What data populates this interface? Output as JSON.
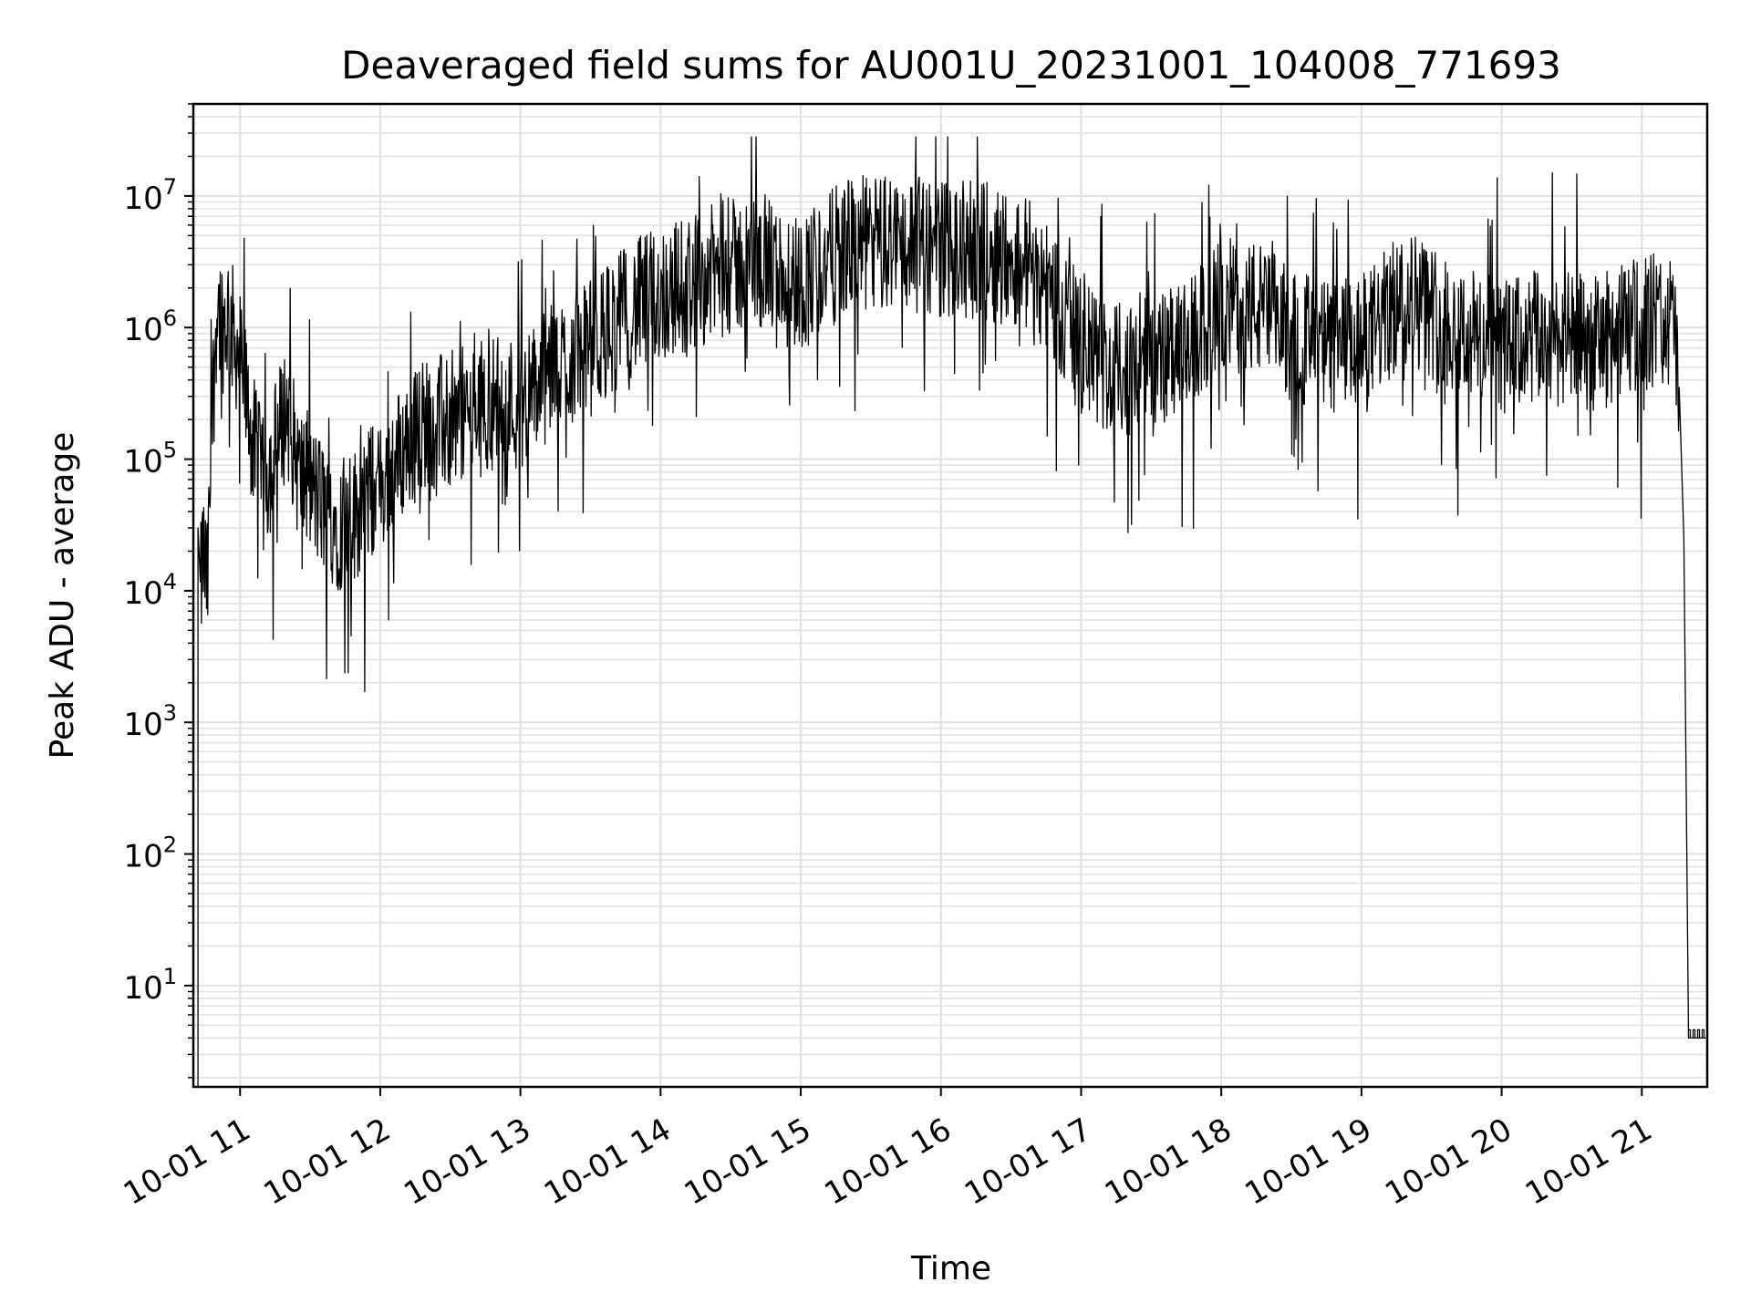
{
  "chart_data": {
    "type": "line",
    "title": "Deaveraged field sums for AU001U_20231001_104008_771693",
    "xlabel": "Time",
    "ylabel": "Peak ADU - average",
    "yscale": "log",
    "ylim": [
      1.7,
      50000000
    ],
    "xlim": [
      "2023-10-01 10:40",
      "2023-10-01 21:28"
    ],
    "grid": true,
    "legend": "none",
    "line_color": "#000000",
    "x_tick_labels": [
      "10-01 11",
      "10-01 12",
      "10-01 13",
      "10-01 14",
      "10-01 15",
      "10-01 16",
      "10-01 17",
      "10-01 18",
      "10-01 19",
      "10-01 20",
      "10-01 21"
    ],
    "y_tick_labels": [
      {
        "base": "10",
        "exp": "1"
      },
      {
        "base": "10",
        "exp": "2"
      },
      {
        "base": "10",
        "exp": "3"
      },
      {
        "base": "10",
        "exp": "4"
      },
      {
        "base": "10",
        "exp": "5"
      },
      {
        "base": "10",
        "exp": "6"
      },
      {
        "base": "10",
        "exp": "7"
      }
    ],
    "series": [
      {
        "x": [
          "2023-10-01 10:42",
          "2023-10-01 10:42",
          "2023-10-01 10:43",
          "2023-10-01 10:44",
          "2023-10-01 10:45",
          "2023-10-01 10:46",
          "2023-10-01 10:48",
          "2023-10-01 10:49",
          "2023-10-01 10:50",
          "2023-10-01 10:52",
          "2023-10-01 10:53",
          "2023-10-01 10:55",
          "2023-10-01 10:57",
          "2023-10-01 11:00",
          "2023-10-01 11:05",
          "2023-10-01 11:10",
          "2023-10-01 11:15",
          "2023-10-01 11:20",
          "2023-10-01 11:25",
          "2023-10-01 11:30",
          "2023-10-01 11:35",
          "2023-10-01 11:40",
          "2023-10-01 11:45",
          "2023-10-01 11:50",
          "2023-10-01 11:55",
          "2023-10-01 12:00",
          "2023-10-01 12:10",
          "2023-10-01 12:20",
          "2023-10-01 12:30",
          "2023-10-01 12:40",
          "2023-10-01 12:50",
          "2023-10-01 13:00",
          "2023-10-01 13:15",
          "2023-10-01 13:30",
          "2023-10-01 13:45",
          "2023-10-01 14:00",
          "2023-10-01 14:20",
          "2023-10-01 14:40",
          "2023-10-01 15:00",
          "2023-10-01 15:20",
          "2023-10-01 15:40",
          "2023-10-01 16:00",
          "2023-10-01 16:20",
          "2023-10-01 16:40",
          "2023-10-01 16:50",
          "2023-10-01 17:00",
          "2023-10-01 17:15",
          "2023-10-01 17:30",
          "2023-10-01 17:45",
          "2023-10-01 18:00",
          "2023-10-01 18:15",
          "2023-10-01 18:30",
          "2023-10-01 18:45",
          "2023-10-01 19:00",
          "2023-10-01 19:20",
          "2023-10-01 19:40",
          "2023-10-01 20:00",
          "2023-10-01 20:20",
          "2023-10-01 20:40",
          "2023-10-01 21:00",
          "2023-10-01 21:10",
          "2023-10-01 21:14",
          "2023-10-01 21:16",
          "2023-10-01 21:18",
          "2023-10-01 21:20",
          "2023-10-01 21:28"
        ],
        "y": [
          1.7,
          30000,
          8000,
          20000,
          15000,
          10000,
          200000,
          500000,
          1500000,
          1200000,
          1000000,
          1300000,
          900000,
          600000,
          150000,
          60000,
          120000,
          250000,
          80000,
          60000,
          45000,
          35000,
          30000,
          40000,
          55000,
          60000,
          120000,
          200000,
          180000,
          230000,
          280000,
          260000,
          500000,
          700000,
          1300000,
          1800000,
          2500000,
          3200000,
          2200000,
          4200000,
          4500000,
          4000000,
          3800000,
          3000000,
          1500000,
          700000,
          450000,
          550000,
          650000,
          1500000,
          1400000,
          900000,
          700000,
          750000,
          1800000,
          1000000,
          700000,
          850000,
          750000,
          1100000,
          1200000,
          1000000,
          300000,
          25000,
          4,
          4
        ]
      }
    ]
  }
}
